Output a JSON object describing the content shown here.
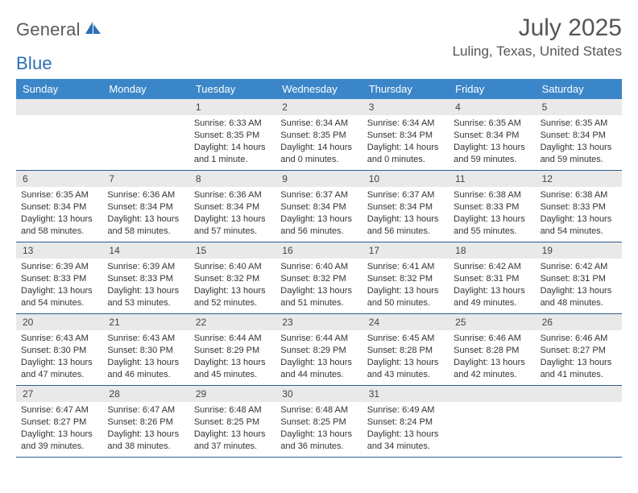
{
  "logo": {
    "text1": "General",
    "text2": "Blue"
  },
  "header": {
    "month_title": "July 2025",
    "location": "Luling, Texas, United States"
  },
  "colors": {
    "header_bg": "#3b86c8",
    "header_text": "#ffffff",
    "daynum_bg": "#e9e9e9",
    "week_border": "#2b5f8f",
    "logo_gray": "#5a5a5a",
    "logo_blue": "#2a6fb5"
  },
  "day_names": [
    "Sunday",
    "Monday",
    "Tuesday",
    "Wednesday",
    "Thursday",
    "Friday",
    "Saturday"
  ],
  "weeks": [
    [
      {
        "day": "",
        "sunrise": "",
        "sunset": "",
        "daylight": ""
      },
      {
        "day": "",
        "sunrise": "",
        "sunset": "",
        "daylight": ""
      },
      {
        "day": "1",
        "sunrise": "Sunrise: 6:33 AM",
        "sunset": "Sunset: 8:35 PM",
        "daylight": "Daylight: 14 hours and 1 minute."
      },
      {
        "day": "2",
        "sunrise": "Sunrise: 6:34 AM",
        "sunset": "Sunset: 8:35 PM",
        "daylight": "Daylight: 14 hours and 0 minutes."
      },
      {
        "day": "3",
        "sunrise": "Sunrise: 6:34 AM",
        "sunset": "Sunset: 8:34 PM",
        "daylight": "Daylight: 14 hours and 0 minutes."
      },
      {
        "day": "4",
        "sunrise": "Sunrise: 6:35 AM",
        "sunset": "Sunset: 8:34 PM",
        "daylight": "Daylight: 13 hours and 59 minutes."
      },
      {
        "day": "5",
        "sunrise": "Sunrise: 6:35 AM",
        "sunset": "Sunset: 8:34 PM",
        "daylight": "Daylight: 13 hours and 59 minutes."
      }
    ],
    [
      {
        "day": "6",
        "sunrise": "Sunrise: 6:35 AM",
        "sunset": "Sunset: 8:34 PM",
        "daylight": "Daylight: 13 hours and 58 minutes."
      },
      {
        "day": "7",
        "sunrise": "Sunrise: 6:36 AM",
        "sunset": "Sunset: 8:34 PM",
        "daylight": "Daylight: 13 hours and 58 minutes."
      },
      {
        "day": "8",
        "sunrise": "Sunrise: 6:36 AM",
        "sunset": "Sunset: 8:34 PM",
        "daylight": "Daylight: 13 hours and 57 minutes."
      },
      {
        "day": "9",
        "sunrise": "Sunrise: 6:37 AM",
        "sunset": "Sunset: 8:34 PM",
        "daylight": "Daylight: 13 hours and 56 minutes."
      },
      {
        "day": "10",
        "sunrise": "Sunrise: 6:37 AM",
        "sunset": "Sunset: 8:34 PM",
        "daylight": "Daylight: 13 hours and 56 minutes."
      },
      {
        "day": "11",
        "sunrise": "Sunrise: 6:38 AM",
        "sunset": "Sunset: 8:33 PM",
        "daylight": "Daylight: 13 hours and 55 minutes."
      },
      {
        "day": "12",
        "sunrise": "Sunrise: 6:38 AM",
        "sunset": "Sunset: 8:33 PM",
        "daylight": "Daylight: 13 hours and 54 minutes."
      }
    ],
    [
      {
        "day": "13",
        "sunrise": "Sunrise: 6:39 AM",
        "sunset": "Sunset: 8:33 PM",
        "daylight": "Daylight: 13 hours and 54 minutes."
      },
      {
        "day": "14",
        "sunrise": "Sunrise: 6:39 AM",
        "sunset": "Sunset: 8:33 PM",
        "daylight": "Daylight: 13 hours and 53 minutes."
      },
      {
        "day": "15",
        "sunrise": "Sunrise: 6:40 AM",
        "sunset": "Sunset: 8:32 PM",
        "daylight": "Daylight: 13 hours and 52 minutes."
      },
      {
        "day": "16",
        "sunrise": "Sunrise: 6:40 AM",
        "sunset": "Sunset: 8:32 PM",
        "daylight": "Daylight: 13 hours and 51 minutes."
      },
      {
        "day": "17",
        "sunrise": "Sunrise: 6:41 AM",
        "sunset": "Sunset: 8:32 PM",
        "daylight": "Daylight: 13 hours and 50 minutes."
      },
      {
        "day": "18",
        "sunrise": "Sunrise: 6:42 AM",
        "sunset": "Sunset: 8:31 PM",
        "daylight": "Daylight: 13 hours and 49 minutes."
      },
      {
        "day": "19",
        "sunrise": "Sunrise: 6:42 AM",
        "sunset": "Sunset: 8:31 PM",
        "daylight": "Daylight: 13 hours and 48 minutes."
      }
    ],
    [
      {
        "day": "20",
        "sunrise": "Sunrise: 6:43 AM",
        "sunset": "Sunset: 8:30 PM",
        "daylight": "Daylight: 13 hours and 47 minutes."
      },
      {
        "day": "21",
        "sunrise": "Sunrise: 6:43 AM",
        "sunset": "Sunset: 8:30 PM",
        "daylight": "Daylight: 13 hours and 46 minutes."
      },
      {
        "day": "22",
        "sunrise": "Sunrise: 6:44 AM",
        "sunset": "Sunset: 8:29 PM",
        "daylight": "Daylight: 13 hours and 45 minutes."
      },
      {
        "day": "23",
        "sunrise": "Sunrise: 6:44 AM",
        "sunset": "Sunset: 8:29 PM",
        "daylight": "Daylight: 13 hours and 44 minutes."
      },
      {
        "day": "24",
        "sunrise": "Sunrise: 6:45 AM",
        "sunset": "Sunset: 8:28 PM",
        "daylight": "Daylight: 13 hours and 43 minutes."
      },
      {
        "day": "25",
        "sunrise": "Sunrise: 6:46 AM",
        "sunset": "Sunset: 8:28 PM",
        "daylight": "Daylight: 13 hours and 42 minutes."
      },
      {
        "day": "26",
        "sunrise": "Sunrise: 6:46 AM",
        "sunset": "Sunset: 8:27 PM",
        "daylight": "Daylight: 13 hours and 41 minutes."
      }
    ],
    [
      {
        "day": "27",
        "sunrise": "Sunrise: 6:47 AM",
        "sunset": "Sunset: 8:27 PM",
        "daylight": "Daylight: 13 hours and 39 minutes."
      },
      {
        "day": "28",
        "sunrise": "Sunrise: 6:47 AM",
        "sunset": "Sunset: 8:26 PM",
        "daylight": "Daylight: 13 hours and 38 minutes."
      },
      {
        "day": "29",
        "sunrise": "Sunrise: 6:48 AM",
        "sunset": "Sunset: 8:25 PM",
        "daylight": "Daylight: 13 hours and 37 minutes."
      },
      {
        "day": "30",
        "sunrise": "Sunrise: 6:48 AM",
        "sunset": "Sunset: 8:25 PM",
        "daylight": "Daylight: 13 hours and 36 minutes."
      },
      {
        "day": "31",
        "sunrise": "Sunrise: 6:49 AM",
        "sunset": "Sunset: 8:24 PM",
        "daylight": "Daylight: 13 hours and 34 minutes."
      },
      {
        "day": "",
        "sunrise": "",
        "sunset": "",
        "daylight": ""
      },
      {
        "day": "",
        "sunrise": "",
        "sunset": "",
        "daylight": ""
      }
    ]
  ]
}
